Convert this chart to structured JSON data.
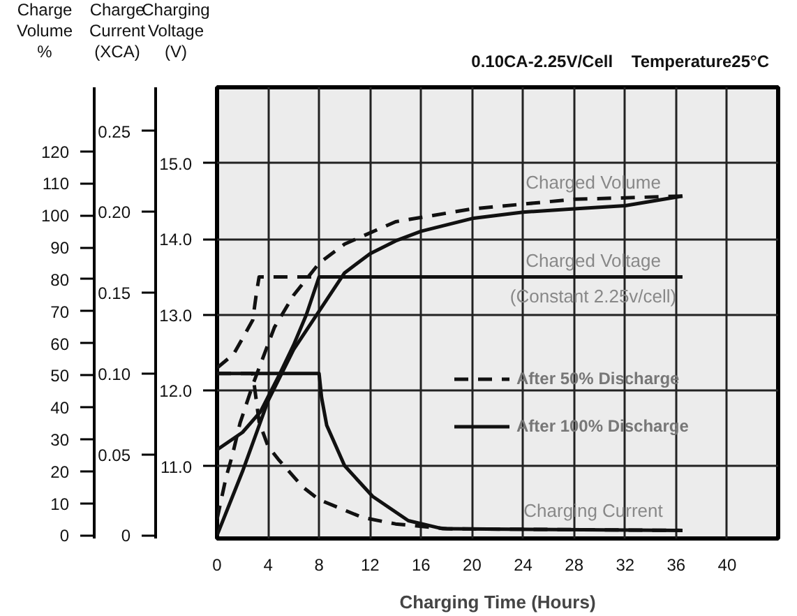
{
  "chart_data": {
    "type": "line",
    "title": "0.10CA-2.25V/Cell    Temperature25°C",
    "xlabel": "Charging Time (Hours)",
    "ylabel": "Charging\nVoltage\n(V)",
    "y2label": "Charge\nCurrent\n(XCA)",
    "y3label": "Charge\nVolume\n%",
    "xlim": [
      0,
      44
    ],
    "xticks": [
      0,
      4,
      8,
      12,
      16,
      20,
      24,
      28,
      32,
      36,
      40
    ],
    "ylim": [
      10.05,
      16.0
    ],
    "yticks": [
      {
        "value": 11,
        "label": "11.0"
      },
      {
        "value": 12,
        "label": "12.0"
      },
      {
        "value": 13,
        "label": "13.0"
      },
      {
        "value": 14,
        "label": "14.0"
      },
      {
        "value": 15,
        "label": "15.0"
      }
    ],
    "y2lim": [
      -0.002,
      0.277
    ],
    "y2ticks": [
      0,
      0.05,
      {
        "value": 0.1,
        "label": "0.10"
      },
      0.15,
      {
        "value": 0.2,
        "label": "0.20"
      },
      0.25
    ],
    "y3lim": [
      -1,
      140
    ],
    "y3ticks": [
      0,
      10,
      20,
      30,
      40,
      50,
      60,
      70,
      80,
      90,
      100,
      110,
      120
    ],
    "grid": true,
    "legend": "right",
    "annotations": [
      "Charged Volume",
      "Charged Voltage",
      "(Constant 2.25v/cell)",
      "Charging Current"
    ],
    "series": [
      {
        "name": "After 50% Discharge",
        "color": "#111111",
        "line_style": "dashed",
        "axis": "y3",
        "x": [
          0,
          0.7,
          1.2,
          1.8,
          2.8,
          4.5,
          6,
          8,
          10,
          14,
          20,
          28,
          36.5
        ],
        "values": [
          5,
          18,
          25,
          35,
          47,
          65,
          75,
          85,
          91,
          98,
          102,
          105,
          106
        ]
      },
      {
        "name": "After 100% Discharge",
        "color": "#111111",
        "line_style": "solid",
        "axis": "y3",
        "x": [
          0,
          2,
          4,
          6,
          8,
          10,
          12,
          14,
          16,
          20,
          24,
          28,
          32,
          36.5
        ],
        "values": [
          0,
          20,
          42,
          58,
          70,
          82,
          88,
          92,
          95,
          99,
          101,
          102,
          103,
          106
        ]
      },
      {
        "color": "#111111",
        "line_style": "dashed",
        "x": [
          0,
          1.3,
          2.8,
          3.1,
          3.3,
          22
        ],
        "values": [
          12.3,
          12.48,
          12.93,
          13.3,
          13.5,
          13.5
        ]
      },
      {
        "color": "#111111",
        "line_style": "solid",
        "x": [
          0,
          2,
          3.4,
          4.8,
          6,
          7,
          8,
          36.5
        ],
        "values": [
          11.22,
          11.45,
          11.72,
          12.18,
          12.6,
          13.0,
          13.5,
          13.5
        ]
      },
      {
        "color": "#111111",
        "line_style": "dashed",
        "axis": "y2",
        "x": [
          0,
          2.8,
          3.3,
          4,
          4.8,
          6.7,
          8,
          11.4,
          14,
          18,
          36.5
        ],
        "values": [
          0.1,
          0.1,
          0.07,
          0.055,
          0.047,
          0.03,
          0.022,
          0.011,
          0.007,
          0.004,
          0.003
        ]
      },
      {
        "color": "#111111",
        "line_style": "solid",
        "axis": "y2",
        "x": [
          0,
          8,
          8.2,
          8.6,
          10,
          12.2,
          15,
          17.7,
          36.5
        ],
        "values": [
          0.1,
          0.1,
          0.085,
          0.068,
          0.043,
          0.024,
          0.009,
          0.004,
          0.003
        ]
      }
    ]
  }
}
